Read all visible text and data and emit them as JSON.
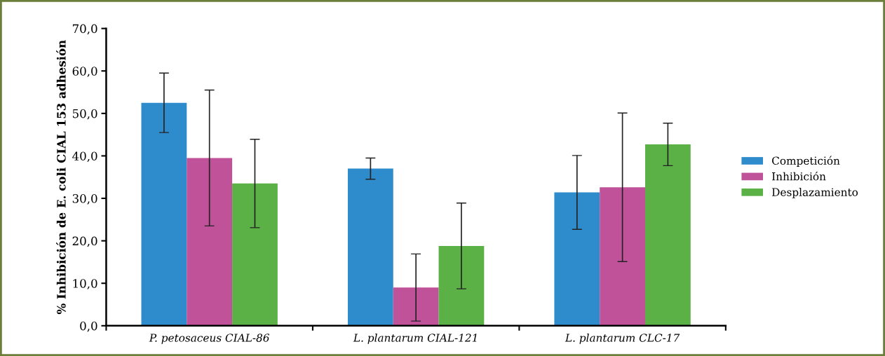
{
  "chart_data": {
    "type": "bar",
    "ylabel": "% Inhibición de E. coli CIAL 153 adhesión",
    "categories": [
      "P. petosaceus CIAL-86",
      "L. plantarum CIAL-121",
      "L. plantarum CLC-17"
    ],
    "series": [
      {
        "name": "Competición",
        "color": "#2e8ccc",
        "values": [
          52.5,
          37.0,
          31.4
        ],
        "errors": [
          7.0,
          2.5,
          8.7
        ]
      },
      {
        "name": "Inhibición",
        "color": "#c0529a",
        "values": [
          39.5,
          9.0,
          32.6
        ],
        "errors": [
          16.0,
          7.9,
          17.5
        ]
      },
      {
        "name": "Desplazamiento",
        "color": "#5bb046",
        "values": [
          33.5,
          18.8,
          42.7
        ],
        "errors": [
          10.4,
          10.1,
          5.0
        ]
      }
    ],
    "ylim": [
      0,
      70
    ],
    "yticks": [
      {
        "value": 0,
        "label": "0,0"
      },
      {
        "value": 10,
        "label": "10,0"
      },
      {
        "value": 20,
        "label": "20,0"
      },
      {
        "value": 30,
        "label": "30,0"
      },
      {
        "value": 40,
        "label": "40,0"
      },
      {
        "value": 50,
        "label": "50,0"
      },
      {
        "value": 60,
        "label": "60,0"
      },
      {
        "value": 70,
        "label": "70,0"
      }
    ],
    "grid": false,
    "legend": "right"
  }
}
